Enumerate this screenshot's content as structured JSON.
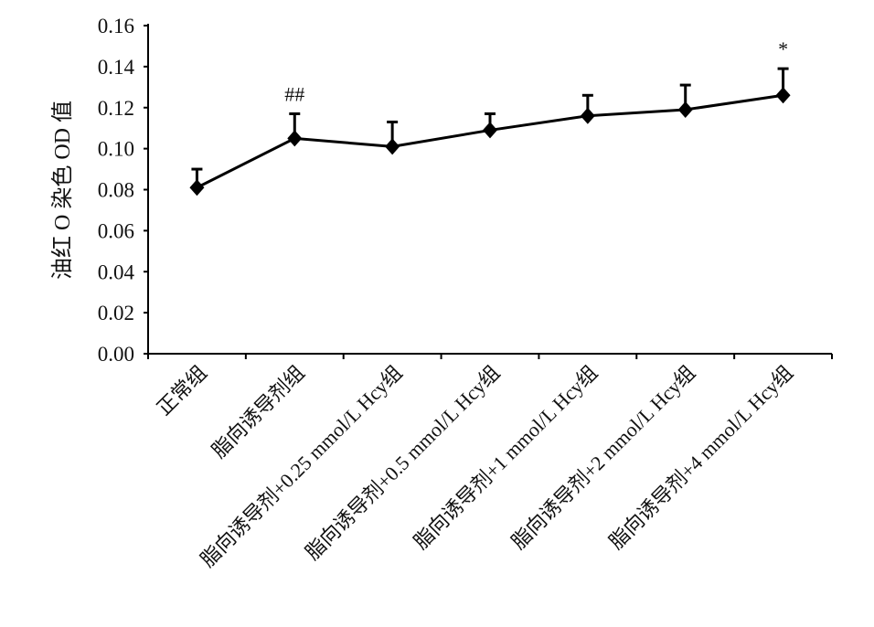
{
  "chart_data": {
    "type": "line",
    "title": "",
    "xlabel": "",
    "ylabel": "油红 O 染色 OD 值",
    "ylim": [
      0,
      0.16
    ],
    "yticks": [
      "0.00",
      "0.02",
      "0.04",
      "0.06",
      "0.08",
      "0.10",
      "0.12",
      "0.14",
      "0.16"
    ],
    "grid": false,
    "categories": [
      "正常组",
      "脂向诱导剂组",
      "脂向诱导剂+0.25 mmol/L Hcy组",
      "脂向诱导剂+0.5 mmol/L Hcy组",
      "脂向诱导剂+1 mmol/L Hcy组",
      "脂向诱导剂+2 mmol/L Hcy组",
      "脂向诱导剂+4 mmol/L Hcy组"
    ],
    "series": [
      {
        "name": "OD",
        "values": [
          0.081,
          0.105,
          0.101,
          0.109,
          0.116,
          0.119,
          0.126
        ],
        "error": [
          0.009,
          0.012,
          0.012,
          0.008,
          0.01,
          0.012,
          0.013
        ]
      }
    ],
    "annotations": [
      "",
      "##",
      "",
      "",
      "",
      "",
      "*"
    ]
  }
}
